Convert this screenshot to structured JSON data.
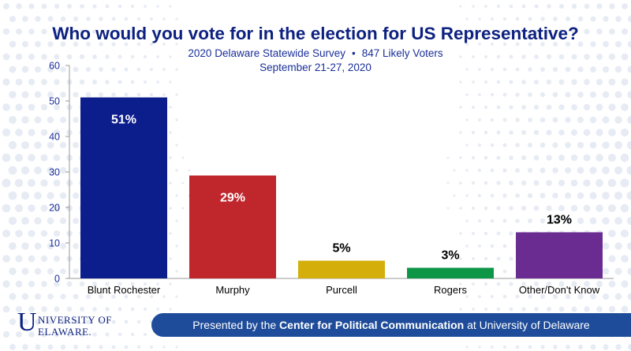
{
  "header": {
    "title": "Who would you vote for in the election for US Representative?",
    "subtitle_survey": "2020 Delaware Statewide Survey",
    "subtitle_separator": "•",
    "subtitle_voters": "847 Likely Voters",
    "subtitle_dates": "September 21-27, 2020"
  },
  "footer": {
    "prefix": "Presented by the",
    "org": "Center for Political Communication",
    "suffix": "at University of Delaware"
  },
  "logo": {
    "text_u": "U",
    "line1": "NIVERSITY OF",
    "line2": "ELAWARE."
  },
  "chart_data": {
    "type": "bar",
    "title": "Who would you vote for in the election for US Representative?",
    "categories": [
      "Blunt Rochester",
      "Murphy",
      "Purcell",
      "Rogers",
      "Other/Don't Know"
    ],
    "values": [
      51,
      29,
      5,
      3,
      13
    ],
    "data_labels": [
      "51%",
      "29%",
      "5%",
      "3%",
      "13%"
    ],
    "colors": [
      "#0c1d8c",
      "#c0272d",
      "#d4ae0b",
      "#0e9647",
      "#6a2c91"
    ],
    "label_colors": [
      "#ffffff",
      "#ffffff",
      "#000000",
      "#000000",
      "#000000"
    ],
    "label_inside": [
      true,
      true,
      false,
      false,
      false
    ],
    "ylim": [
      0,
      60
    ],
    "yticks": [
      0,
      10,
      20,
      30,
      40,
      50,
      60
    ],
    "grid": false,
    "xlabel": "",
    "ylabel": ""
  }
}
